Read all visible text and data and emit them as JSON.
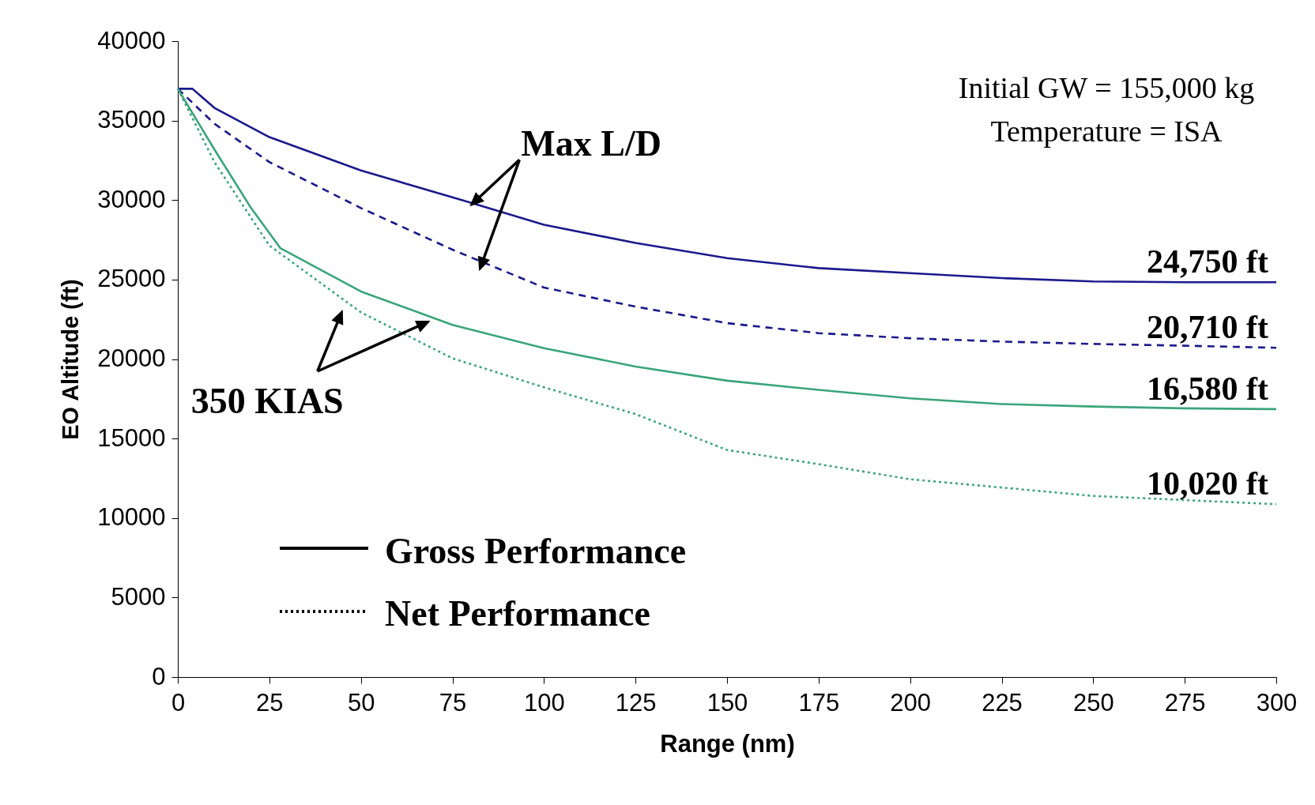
{
  "chart_data": {
    "type": "line",
    "xlabel": "Range (nm)",
    "ylabel": "EO Altitude (ft)",
    "xlim": [
      0,
      300
    ],
    "xticks": [
      0,
      25,
      50,
      75,
      100,
      125,
      150,
      175,
      200,
      225,
      250,
      275,
      300
    ],
    "ylim": [
      0,
      40000
    ],
    "yticks": [
      0,
      5000,
      10000,
      15000,
      20000,
      25000,
      30000,
      35000,
      40000
    ],
    "grid": false,
    "marker": "none",
    "series": [
      {
        "color": "#1a1a8c",
        "line_style": "solid",
        "x": [
          0,
          4,
          10,
          25,
          50,
          75,
          100,
          125,
          150,
          175,
          200,
          225,
          250,
          275,
          300
        ],
        "values": [
          37000,
          37000,
          35800,
          33960,
          31860,
          30180,
          28450,
          27300,
          26350,
          25720,
          25400,
          25090,
          24880,
          24830,
          24830
        ]
      },
      {
        "color": "#1a1a8c",
        "line_style": "dashed",
        "x": [
          0,
          10,
          25,
          50,
          75,
          100,
          125,
          150,
          175,
          200,
          225,
          250,
          275,
          300
        ],
        "values": [
          37000,
          34800,
          32390,
          29500,
          26880,
          24500,
          23300,
          22260,
          21630,
          21310,
          21100,
          20950,
          20840,
          20710
        ]
      },
      {
        "color": "#3aa57a",
        "line_style": "solid",
        "x": [
          0,
          10,
          20,
          28,
          50,
          75,
          100,
          125,
          150,
          175,
          200,
          225,
          250,
          275,
          300
        ],
        "values": [
          37000,
          33180,
          29500,
          26980,
          24250,
          22150,
          20680,
          19530,
          18640,
          18060,
          17530,
          17170,
          17010,
          16900,
          16850
        ]
      },
      {
        "color": "#3aa57a",
        "line_style": "dotted",
        "x": [
          0,
          10,
          25,
          50,
          75,
          100,
          125,
          150,
          175,
          200,
          225,
          250,
          275,
          300
        ],
        "values": [
          37000,
          32390,
          27140,
          22940,
          20050,
          18220,
          16540,
          14280,
          13390,
          12440,
          11920,
          11390,
          11130,
          10870
        ]
      }
    ],
    "annotations": [
      "Initial GW = 155,000 kg",
      "Temperature = ISA",
      {
        "text": "Max L/D",
        "x": 79.7,
        "y": 29600
      },
      {
        "text": "350 KIAS",
        "x": 69,
        "y": 22410
      },
      "Gross Performance",
      "Net Performance",
      {
        "text": "24,750 ft",
        "x": 300,
        "y": 24830
      },
      {
        "text": "20,710 ft",
        "x": 300,
        "y": 20710
      },
      {
        "text": "16,580 ft",
        "x": 300,
        "y": 16850
      },
      {
        "text": "10,020 ft",
        "x": 300,
        "y": 10870
      }
    ]
  }
}
